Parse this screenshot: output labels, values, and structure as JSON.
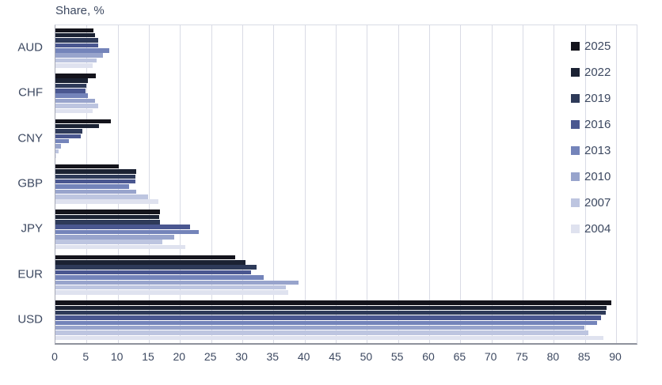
{
  "title": "Share, %",
  "colors": {
    "grid": "#d9dbe5",
    "axis_line": "#8f929c",
    "text": "#3d4961"
  },
  "chart_data": {
    "type": "bar",
    "orientation": "horizontal",
    "title": "Share, %",
    "xlabel": "",
    "ylabel": "",
    "xlim": [
      0,
      93.3
    ],
    "x_ticks": [
      0,
      5,
      10,
      15,
      20,
      25,
      30,
      35,
      40,
      45,
      50,
      55,
      60,
      65,
      70,
      75,
      80,
      85,
      90
    ],
    "grid": "vertical",
    "legend_position": "top-right-inside",
    "categories": [
      "AUD",
      "CHF",
      "CNY",
      "GBP",
      "JPY",
      "EUR",
      "USD"
    ],
    "series": [
      {
        "name": "2025",
        "color": "#14141c",
        "values": [
          6.1,
          6.5,
          8.9,
          10.2,
          16.8,
          28.9,
          89.2
        ]
      },
      {
        "name": "2022",
        "color": "#1b2233",
        "values": [
          6.4,
          5.2,
          7.0,
          12.9,
          16.7,
          30.5,
          88.5
        ]
      },
      {
        "name": "2019",
        "color": "#2e3a59",
        "values": [
          6.8,
          4.9,
          4.3,
          12.8,
          16.8,
          32.3,
          88.3
        ]
      },
      {
        "name": "2016",
        "color": "#4a5790",
        "values": [
          6.9,
          4.8,
          4.0,
          12.8,
          21.6,
          31.4,
          87.6
        ]
      },
      {
        "name": "2013",
        "color": "#7484ba",
        "values": [
          8.6,
          5.2,
          2.2,
          11.8,
          23.0,
          33.4,
          87.0
        ]
      },
      {
        "name": "2010",
        "color": "#98a4cc",
        "values": [
          7.6,
          6.3,
          0.9,
          12.9,
          19.0,
          39.0,
          84.9
        ]
      },
      {
        "name": "2007",
        "color": "#bdc5e0",
        "values": [
          6.6,
          6.8,
          0.5,
          14.9,
          17.2,
          37.0,
          85.6
        ]
      },
      {
        "name": "2004",
        "color": "#dfe2ef",
        "values": [
          6.0,
          6.0,
          0.1,
          16.5,
          20.8,
          37.4,
          88.0
        ]
      }
    ]
  }
}
